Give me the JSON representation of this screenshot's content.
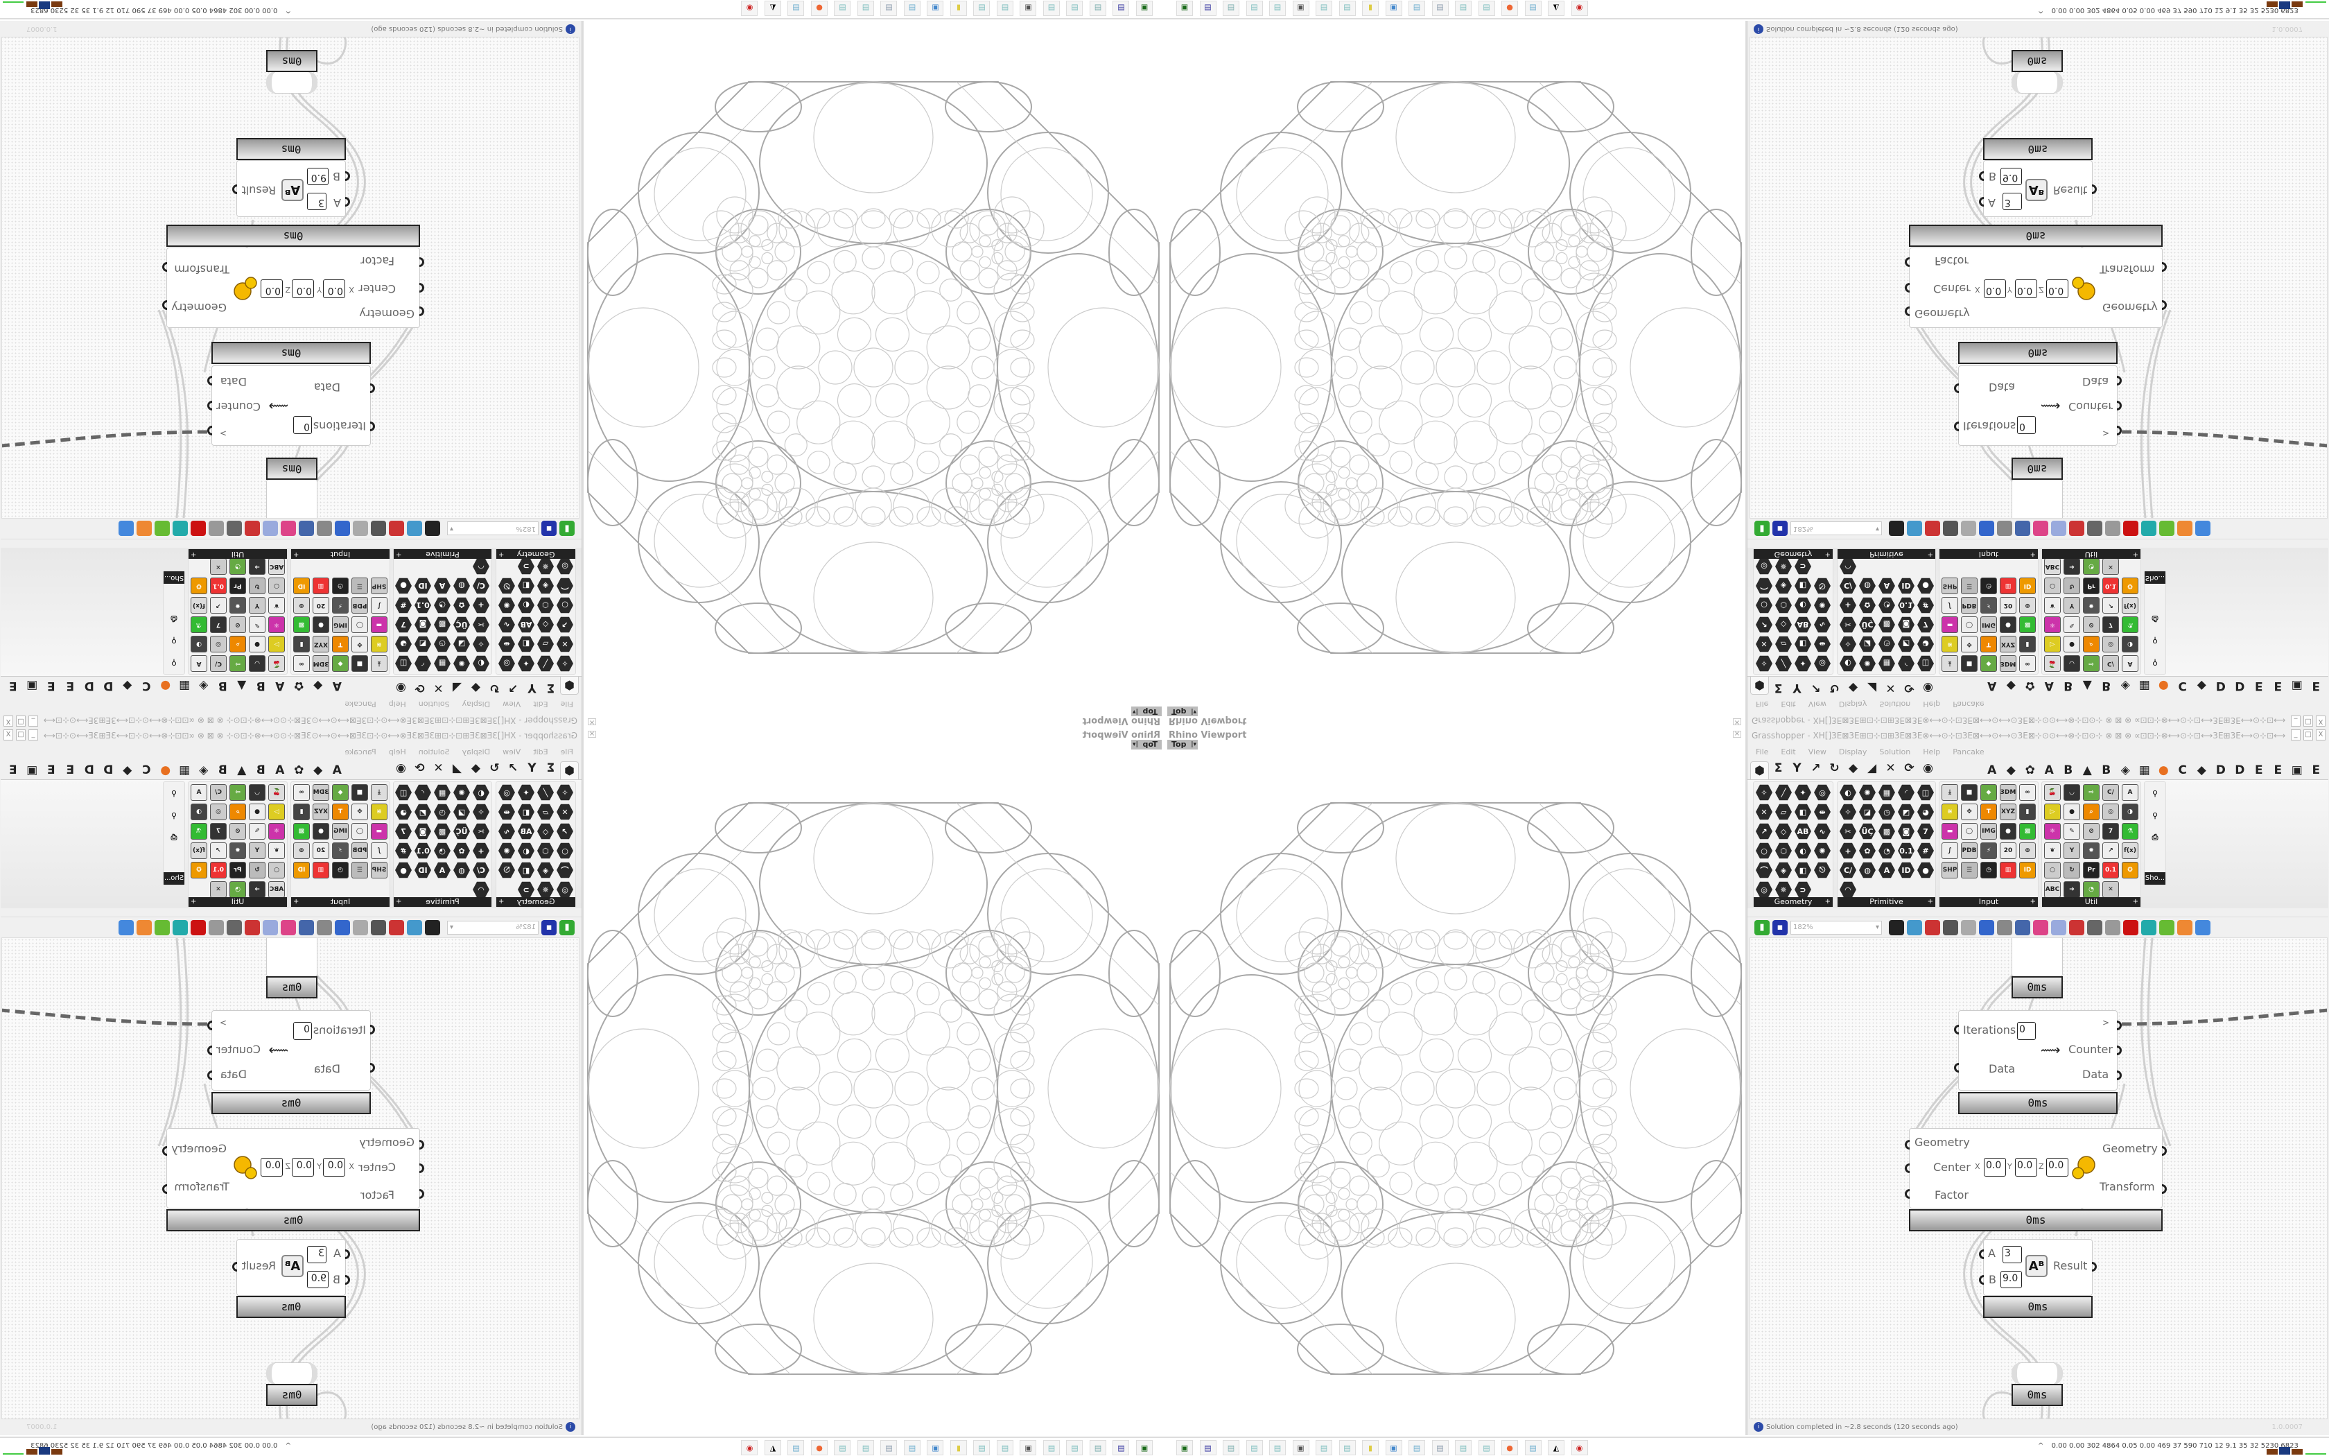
{
  "viewport": {
    "title": "Rhino Viewport",
    "view": "Top",
    "close_icon": "close-icon"
  },
  "grasshopper": {
    "title": "Grasshopper - XH[]3E⊠3E⊞⊡⊹⊡⊞3E⊠3E⊗⟷⊙⊹⊡3E⊠⟷⊙⟷⊙3E⊠⊹⊙⊙⟷⊗⊹⊡⊙⊹ ⊗ ⊠ ⊗ ∝⊡⊡⊹⊗⟷⊙⊹⊡⟷3E⊞3E⟷⊙⊹⊡⟷⊗⊹⊡⊙∝ ⊗ ⊠ ⊗ ∝⊡⊡⊹⊗⟷⊙⊙⊹3E⊠⟷⊙...",
    "window_buttons": [
      "_",
      "□",
      "X"
    ],
    "menu": [
      "File",
      "Edit",
      "View",
      "Display",
      "Solution",
      "Help",
      "Pancake"
    ],
    "tab_icons": [
      "⬢",
      "Σ",
      "Y",
      "↗",
      "↻",
      "◆",
      "◢",
      "✕",
      "⟳",
      "◉"
    ],
    "tab_letters": [
      "A",
      "◆",
      "✿",
      "A",
      "B",
      "▲",
      "B",
      "◈",
      "▦",
      "●",
      "C",
      "◆",
      "D",
      "D",
      "E",
      "E",
      "▣",
      "E"
    ],
    "panels": [
      {
        "label": "Geometry",
        "style": "hex",
        "cols": 4,
        "icons": [
          "✧",
          "╱",
          "✦",
          "◎",
          "✕",
          "▱",
          "◧",
          "⇹",
          "↗",
          "◇",
          "AB",
          "∿",
          "○",
          "⬡",
          "◐",
          "✺",
          "⌒",
          "◈",
          "◧",
          "⎋",
          "◎",
          "✵",
          "⊃"
        ]
      },
      {
        "label": "Primitive",
        "style": "hex",
        "cols": 5,
        "icons": [
          "◐",
          "✺",
          "▦",
          "◜",
          "◫",
          "✧",
          "◪",
          "◷",
          "◩",
          "◕",
          "✂",
          "ÜÇ",
          "▩",
          "◙",
          "7",
          "+",
          "✿",
          "◔",
          "0.1",
          "#",
          "C/",
          "◍",
          "A",
          "ID",
          "●",
          "◠"
        ]
      },
      {
        "label": "Input",
        "style": "sq",
        "cols": 5,
        "icons": [
          "⤓",
          "■",
          "◆",
          "3DM",
          "∞",
          "≋",
          "✥",
          "T",
          "XYZ",
          "▮",
          "▬",
          "◯",
          "IMG",
          "●",
          "▩",
          "∫",
          "PDB",
          "⚡",
          "20",
          "⊚",
          "SHP",
          "☰",
          "◷",
          "▥",
          "ID"
        ]
      },
      {
        "label": "Util",
        "style": "sq",
        "cols": 5,
        "icons": [
          "🍒",
          "◡",
          "⇨",
          "C/",
          "A",
          "▷",
          "●",
          "⌕",
          "◎",
          "◑",
          "⚛",
          "✎",
          "⊘",
          "7",
          "⚗",
          "❦",
          "Y",
          "✹",
          "↗",
          "f(x)",
          "○",
          "↻",
          "Pr",
          "0.1",
          "✪",
          "ABC",
          "➔",
          "◔",
          "✕"
        ]
      }
    ],
    "show_panel": {
      "icons": [
        "⚲",
        "⚲",
        "⎙"
      ],
      "label": "Sho..."
    },
    "toolbar": {
      "open_icon": "file-open-icon",
      "save_icon": "save-icon",
      "zoom": "182%",
      "icons": [
        "fit-view-icon",
        "preview-eye-icon",
        "sketch-icon",
        "bake-icon",
        "email-icon",
        "gha-icon",
        "canvas-icon",
        "search-icon",
        "package-icon",
        "bulb-icon",
        "wires-icon",
        "shade-icon",
        "wireframe-icon",
        "red-cube-icon",
        "teal-shape-icon",
        "green-shape-icon",
        "sphere-half-icon",
        "blue-sphere-icon"
      ]
    },
    "nodes": {
      "top_bar": "0ms",
      "loop": {
        "in_iterations": "Iterations",
        "iterations_value": "0",
        "in_data": "Data",
        "out_next": ">",
        "out_counter": "Counter",
        "out_data": "Data",
        "bar": "0ms"
      },
      "scale": {
        "in_geometry": "Geometry",
        "in_center": "Center",
        "x": "X",
        "y": "Y",
        "z": "Z",
        "x_val": "0.0",
        "y_val": "0.0",
        "z_val": "0.0",
        "in_factor": "Factor",
        "out_geometry": "Geometry",
        "out_transform": "Transform",
        "bar": "0ms"
      },
      "power": {
        "in_a": "A",
        "a_val": "3",
        "in_b": "B",
        "b_val": "9.0",
        "out_result": "Result",
        "bar": "0ms"
      },
      "bottom_bar": "0ms"
    },
    "status": "Solution completed in ~2.8 seconds (120 seconds ago)",
    "version": "1.0.0007"
  },
  "taskbar": {
    "icons": [
      {
        "name": "terminal-icon",
        "glyph": "▣",
        "color": "#1a6b1a"
      },
      {
        "name": "floppy-icon",
        "glyph": "▤",
        "color": "#2a2a9a"
      },
      {
        "name": "notepad-icon",
        "glyph": "▤",
        "color": "#7aa"
      },
      {
        "name": "notepad-icon",
        "glyph": "▤",
        "color": "#7bb"
      },
      {
        "name": "notepad-icon",
        "glyph": "▤",
        "color": "#7bb"
      },
      {
        "name": "monitor-icon",
        "glyph": "▣",
        "color": "#555"
      },
      {
        "name": "notepad-icon",
        "glyph": "▤",
        "color": "#7bb"
      },
      {
        "name": "notepad-icon",
        "glyph": "▤",
        "color": "#7bb"
      },
      {
        "name": "folder-icon",
        "glyph": "▮",
        "color": "#dc4"
      },
      {
        "name": "app-window-icon",
        "glyph": "▣",
        "color": "#48c"
      },
      {
        "name": "notepad-icon",
        "glyph": "▤",
        "color": "#6ac"
      },
      {
        "name": "document-icon",
        "glyph": "▤",
        "color": "#89a"
      },
      {
        "name": "notepad-icon",
        "glyph": "▤",
        "color": "#7bb"
      },
      {
        "name": "notepad-icon",
        "glyph": "▤",
        "color": "#7bb"
      },
      {
        "name": "firefox-icon",
        "glyph": "●",
        "color": "#e63"
      },
      {
        "name": "notepad-icon",
        "glyph": "▤",
        "color": "#6ac"
      },
      {
        "name": "inkscape-icon",
        "glyph": "◭",
        "color": "#000"
      },
      {
        "name": "red-app-icon",
        "glyph": "◉",
        "color": "#c22"
      }
    ],
    "tray_expand": "^",
    "tray_stats": "0.00 0.00 302 4864 0.05 0.00 469 37 590 710 12 9.1 35 32 5230 6823"
  },
  "colors": {
    "geometry_line": "#cccccc",
    "geometry_line_strong": "#a8a8a8",
    "status_icon": "#2b4aa8",
    "panel_label": "#222222",
    "wire": "#666666"
  }
}
